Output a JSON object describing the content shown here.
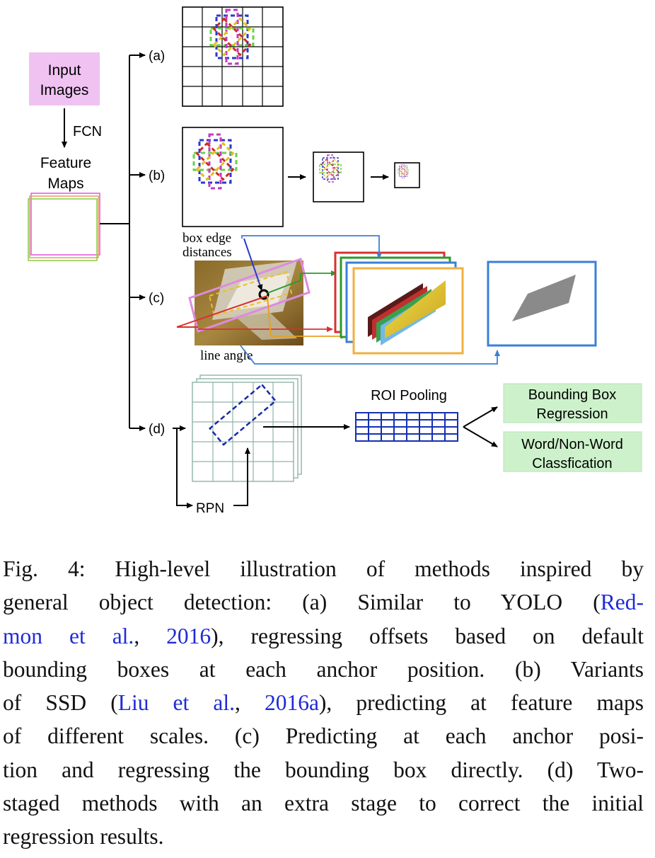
{
  "diagram": {
    "input_images_lines": [
      "Input",
      "Images"
    ],
    "fcn_label": "FCN",
    "feature_maps_lines": [
      "Feature",
      "Maps"
    ],
    "branch_a": "(a)",
    "branch_b": "(b)",
    "branch_c": "(c)",
    "branch_d": "(d)",
    "box_edge_lines": [
      "box edge",
      "distances"
    ],
    "line_angle": "line angle",
    "roi_pooling": "ROI Pooling",
    "rpn": "RPN",
    "bbox_reg_lines": [
      "Bounding Box",
      "Regression"
    ],
    "word_cls_lines": [
      "Word/Non-Word",
      "Classfication"
    ],
    "colors": {
      "input_fill": "#f0c2f2",
      "output_fill": "#cdf2cb",
      "grid_blue": "#1a2aa8",
      "roi_grid": "#1530b0"
    }
  },
  "caption": {
    "lines": [
      {
        "parts": [
          {
            "t": "Fig. 4: High-level illustration of methods inspired by"
          }
        ]
      },
      {
        "parts": [
          {
            "t": "general object detection: (a) Similar to YOLO ("
          },
          {
            "t": "Red-",
            "cite": true
          }
        ]
      },
      {
        "parts": [
          {
            "t": "mon et al.",
            "cite": true
          },
          {
            "t": ", "
          },
          {
            "t": "2016",
            "cite": true
          },
          {
            "t": "), regressing offsets based on default"
          }
        ]
      },
      {
        "parts": [
          {
            "t": "bounding boxes at each anchor position. (b) Variants"
          }
        ]
      },
      {
        "parts": [
          {
            "t": "of SSD ("
          },
          {
            "t": "Liu et al.",
            "cite": true
          },
          {
            "t": ", "
          },
          {
            "t": "2016a",
            "cite": true
          },
          {
            "t": "), predicting at feature maps"
          }
        ]
      },
      {
        "parts": [
          {
            "t": "of different scales. (c) Predicting at each anchor posi-"
          }
        ]
      },
      {
        "parts": [
          {
            "t": "tion and regressing the bounding box directly. (d) Two-"
          }
        ]
      },
      {
        "parts": [
          {
            "t": "staged methods with an extra stage to correct the initial"
          }
        ]
      },
      {
        "parts": [
          {
            "t": "regression results."
          }
        ]
      }
    ]
  }
}
